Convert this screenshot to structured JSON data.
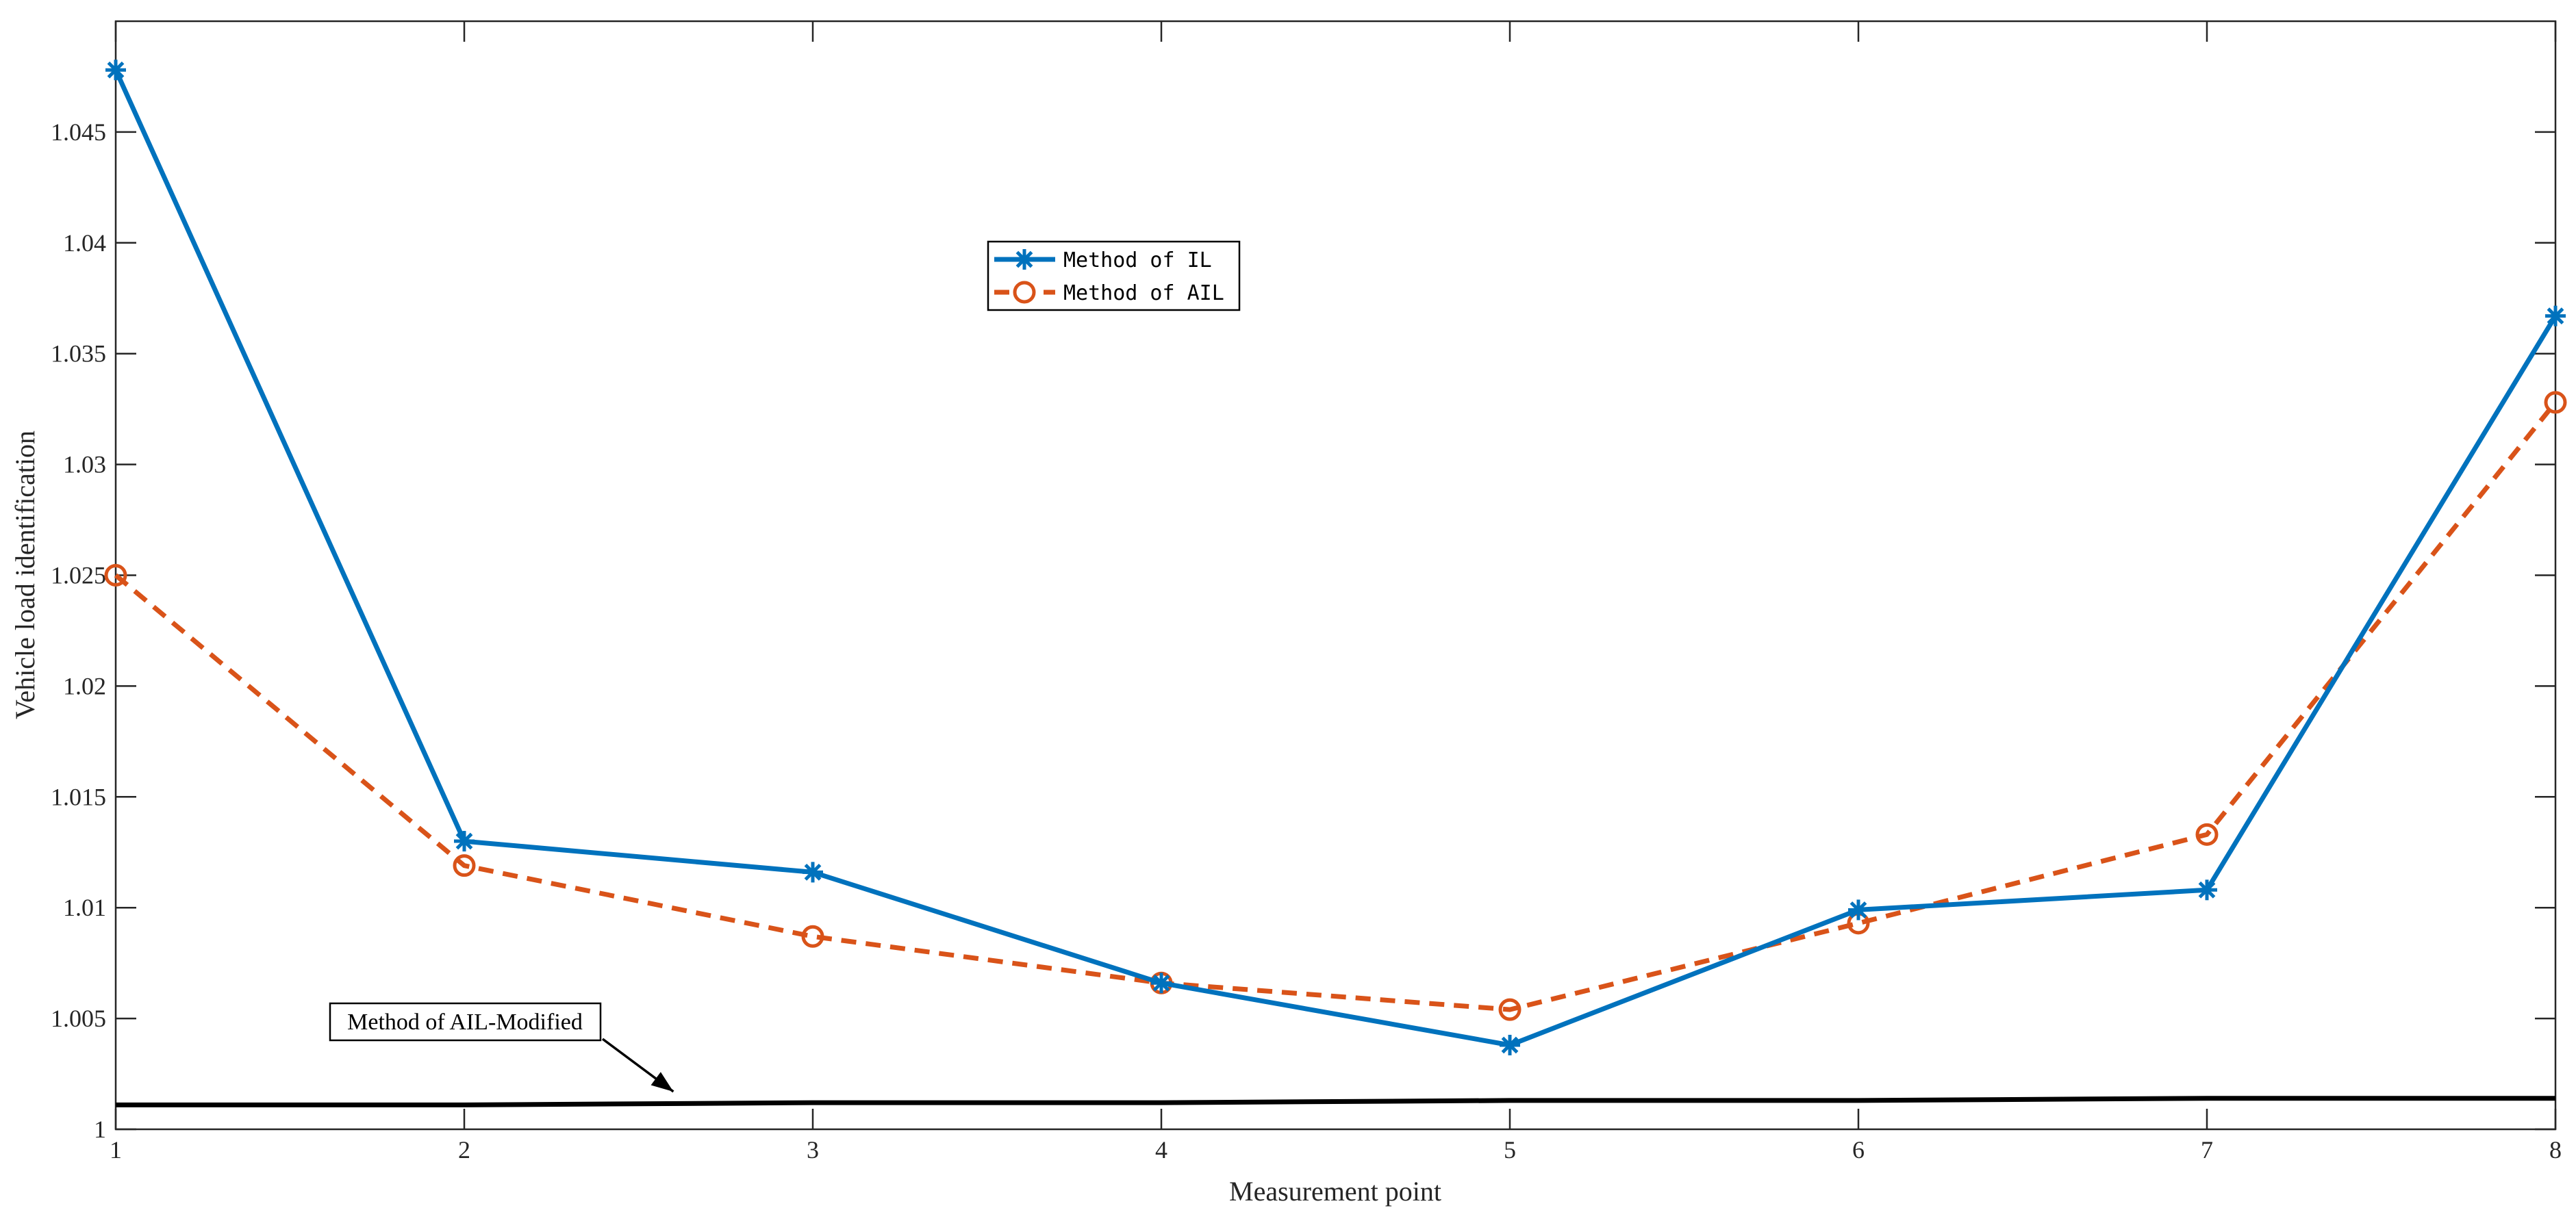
{
  "chart_data": {
    "type": "line",
    "xlabel": "Measurement point",
    "ylabel": "Vehicle load identification",
    "xlim": [
      1,
      8
    ],
    "ylim": [
      1,
      1.05
    ],
    "x_ticks": [
      "1",
      "2",
      "3",
      "4",
      "5",
      "6",
      "7",
      "8"
    ],
    "y_ticks": [
      "1",
      "1.005",
      "1.01",
      "1.015",
      "1.02",
      "1.025",
      "1.03",
      "1.035",
      "1.04",
      "1.045"
    ],
    "grid": false,
    "legend_position": "upper-center",
    "x": [
      1,
      2,
      3,
      4,
      5,
      6,
      7,
      8
    ],
    "series": [
      {
        "name": "Method of IL",
        "color": "#0072BD",
        "marker": "asterisk",
        "line": "solid",
        "values": [
          1.0478,
          1.013,
          1.0116,
          1.0066,
          1.0038,
          1.0099,
          1.0108,
          1.0367
        ]
      },
      {
        "name": "Method of AIL",
        "color": "#D95319",
        "marker": "circle",
        "line": "dashed",
        "values": [
          1.025,
          1.0119,
          1.0087,
          1.0066,
          1.0054,
          1.0093,
          1.0133,
          1.0328
        ]
      },
      {
        "name": "Method of AIL-Modified",
        "color": "#000000",
        "marker": "none",
        "line": "solid",
        "values": [
          1.0011,
          1.0011,
          1.0012,
          1.0012,
          1.0013,
          1.0013,
          1.0014,
          1.0014
        ]
      }
    ],
    "annotations": [
      {
        "text": "Method of AIL-Modified",
        "arrow_to_x": 2.6,
        "arrow_to_y": 1.0017
      }
    ]
  }
}
